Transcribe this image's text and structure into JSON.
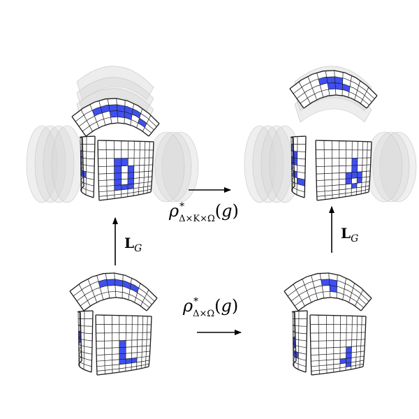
{
  "labels": {
    "rho_top": {
      "symbol": "ρ",
      "star": "*",
      "subscript": "Δ×K×Ω",
      "open": "(",
      "arg": "g",
      "close": ")"
    },
    "rho_bottom": {
      "symbol": "ρ",
      "star": "*",
      "subscript": "Δ×Ω",
      "open": "(",
      "arg": "g",
      "close": ")"
    },
    "lift_left": {
      "L": "L",
      "G": "G"
    },
    "lift_right": {
      "L": "L",
      "G": "G"
    }
  },
  "colors": {
    "cell_fill": "#ffffff",
    "active_cell": "#3f4ff0",
    "grid_line": "#1a1a1a",
    "ghost": "#d6d6d6",
    "arrow": "#000000"
  },
  "spheres": [
    {
      "id": "bottom-left",
      "stacked": false
    },
    {
      "id": "bottom-right",
      "stacked": false
    },
    {
      "id": "top-left",
      "stacked": true
    },
    {
      "id": "top-right",
      "stacked": true
    }
  ]
}
